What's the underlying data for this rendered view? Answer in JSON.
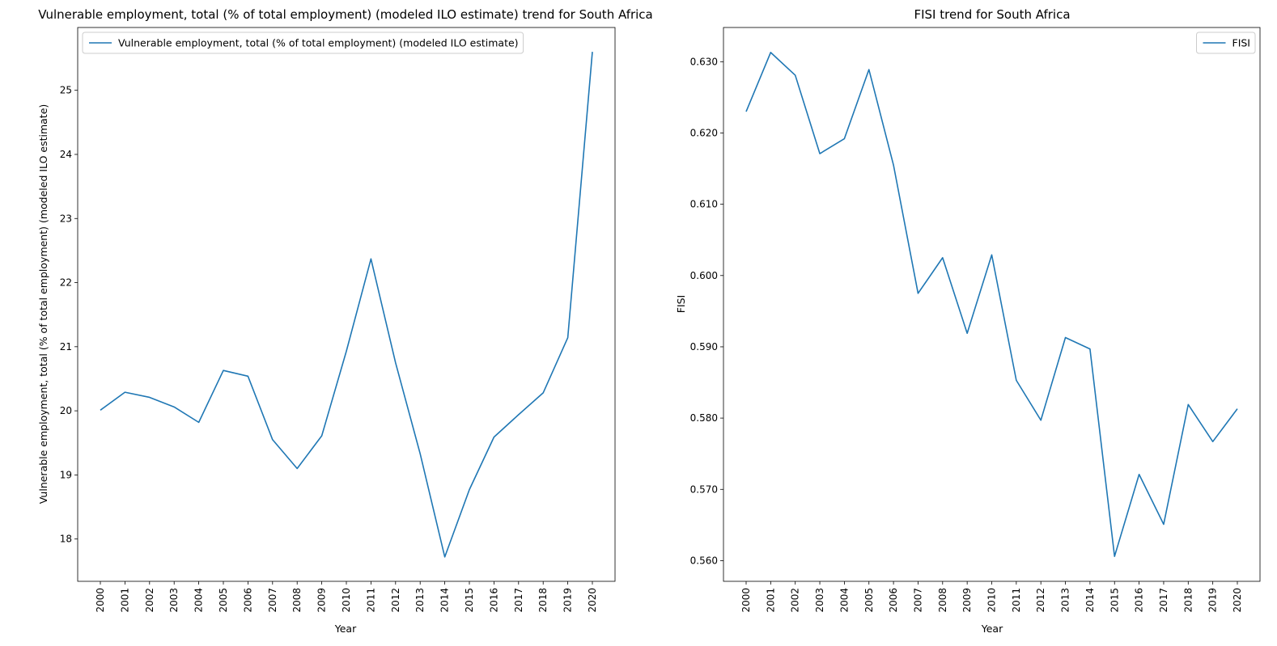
{
  "chart_data": [
    {
      "type": "line",
      "title": "Vulnerable employment, total (% of total employment) (modeled ILO estimate) trend for South Africa",
      "xlabel": "Year",
      "ylabel": "Vulnerable employment, total (% of total employment) (modeled ILO estimate)",
      "categories": [
        "2000",
        "2001",
        "2002",
        "2003",
        "2004",
        "2005",
        "2006",
        "2007",
        "2008",
        "2009",
        "2010",
        "2011",
        "2012",
        "2013",
        "2014",
        "2015",
        "2016",
        "2017",
        "2018",
        "2019",
        "2020"
      ],
      "series": [
        {
          "name": "Vulnerable employment, total (% of total employment) (modeled ILO estimate)",
          "values": [
            20.01,
            20.29,
            20.21,
            20.06,
            19.82,
            20.63,
            20.54,
            19.55,
            19.1,
            19.61,
            20.93,
            22.37,
            20.75,
            19.33,
            17.72,
            18.77,
            19.59,
            19.94,
            20.28,
            21.14,
            25.6
          ]
        }
      ],
      "ylim": [
        17.34,
        25.98
      ],
      "yticks": [
        18,
        19,
        20,
        21,
        22,
        23,
        24,
        25
      ],
      "color": "#1f77b4",
      "legend_position": "upper left",
      "grid": false
    },
    {
      "type": "line",
      "title": "FISI trend for South Africa",
      "xlabel": "Year",
      "ylabel": "FISI",
      "categories": [
        "2000",
        "2001",
        "2002",
        "2003",
        "2004",
        "2005",
        "2006",
        "2007",
        "2008",
        "2009",
        "2010",
        "2011",
        "2012",
        "2013",
        "2014",
        "2015",
        "2016",
        "2017",
        "2018",
        "2019",
        "2020"
      ],
      "series": [
        {
          "name": "FISI",
          "values": [
            0.623,
            0.6313,
            0.6281,
            0.6171,
            0.6192,
            0.6289,
            0.6155,
            0.5975,
            0.6025,
            0.5919,
            0.6029,
            0.5853,
            0.5797,
            0.5913,
            0.5897,
            0.5606,
            0.5721,
            0.5651,
            0.5819,
            0.5767,
            0.5813
          ]
        }
      ],
      "ylim": [
        0.5571,
        0.6348
      ],
      "yticks": [
        "0.560",
        "0.570",
        "0.580",
        "0.590",
        "0.600",
        "0.610",
        "0.620",
        "0.630"
      ],
      "color": "#1f77b4",
      "legend_position": "upper right",
      "grid": false
    }
  ]
}
